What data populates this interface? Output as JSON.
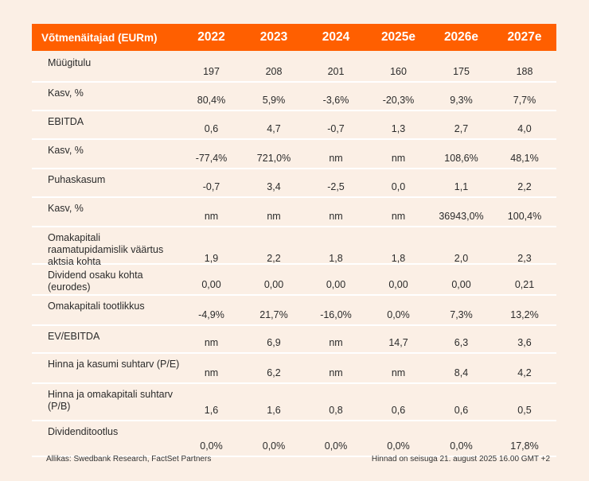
{
  "table": {
    "header": [
      "Võtmenäitajad (EURm)",
      "2022",
      "2023",
      "2024",
      "2025e",
      "2026e",
      "2027e"
    ],
    "rows": [
      {
        "label": "Müügitulu",
        "values": [
          "197",
          "208",
          "201",
          "160",
          "175",
          "188"
        ]
      },
      {
        "label": "Kasv, %",
        "values": [
          "80,4%",
          "5,9%",
          "-3,6%",
          "-20,3%",
          "9,3%",
          "7,7%"
        ]
      },
      {
        "label": "EBITDA",
        "values": [
          "0,6",
          "4,7",
          "-0,7",
          "1,3",
          "2,7",
          "4,0"
        ]
      },
      {
        "label": "Kasv, %",
        "values": [
          "-77,4%",
          "721,0%",
          "nm",
          "nm",
          "108,6%",
          "48,1%"
        ]
      },
      {
        "label": "Puhaskasum",
        "values": [
          "-0,7",
          "3,4",
          "-2,5",
          "0,0",
          "1,1",
          "2,2"
        ]
      },
      {
        "label": "Kasv, %",
        "values": [
          "nm",
          "nm",
          "nm",
          "nm",
          "36943,0%",
          "100,4%"
        ]
      },
      {
        "label": "Omakapitali raamatupidamislik väärtus aktsia kohta",
        "values": [
          "1,9",
          "2,2",
          "1,8",
          "1,8",
          "2,0",
          "2,3"
        ]
      },
      {
        "label": "Dividend osaku kohta (eurodes)",
        "values": [
          "0,00",
          "0,00",
          "0,00",
          "0,00",
          "0,00",
          "0,21"
        ]
      },
      {
        "label": "Omakapitali tootlikkus",
        "values": [
          "-4,9%",
          "21,7%",
          "-16,0%",
          "0,0%",
          "7,3%",
          "13,2%"
        ]
      },
      {
        "label": "EV/EBITDA",
        "values": [
          "nm",
          "6,9",
          "nm",
          "14,7",
          "6,3",
          "3,6"
        ]
      },
      {
        "label": "Hinna ja kasumi suhtarv (P/E)",
        "values": [
          "nm",
          "6,2",
          "nm",
          "nm",
          "8,4",
          "4,2"
        ]
      },
      {
        "label": "Hinna ja omakapitali suhtarv (P/B)",
        "values": [
          "1,6",
          "1,6",
          "0,8",
          "0,6",
          "0,6",
          "0,5"
        ]
      },
      {
        "label": "Dividenditootlus",
        "values": [
          "0,0%",
          "0,0%",
          "0,0%",
          "0,0%",
          "0,0%",
          "17,8%"
        ]
      }
    ]
  },
  "footer": {
    "source": "Allikas: Swedbank Research, FactSet Partners",
    "price_note": "Hinnad on seisuga 21. august 2025 16.00 GMT +2"
  },
  "colors": {
    "header_bg": "#ff5f00",
    "page_bg": "#fbefe5"
  }
}
